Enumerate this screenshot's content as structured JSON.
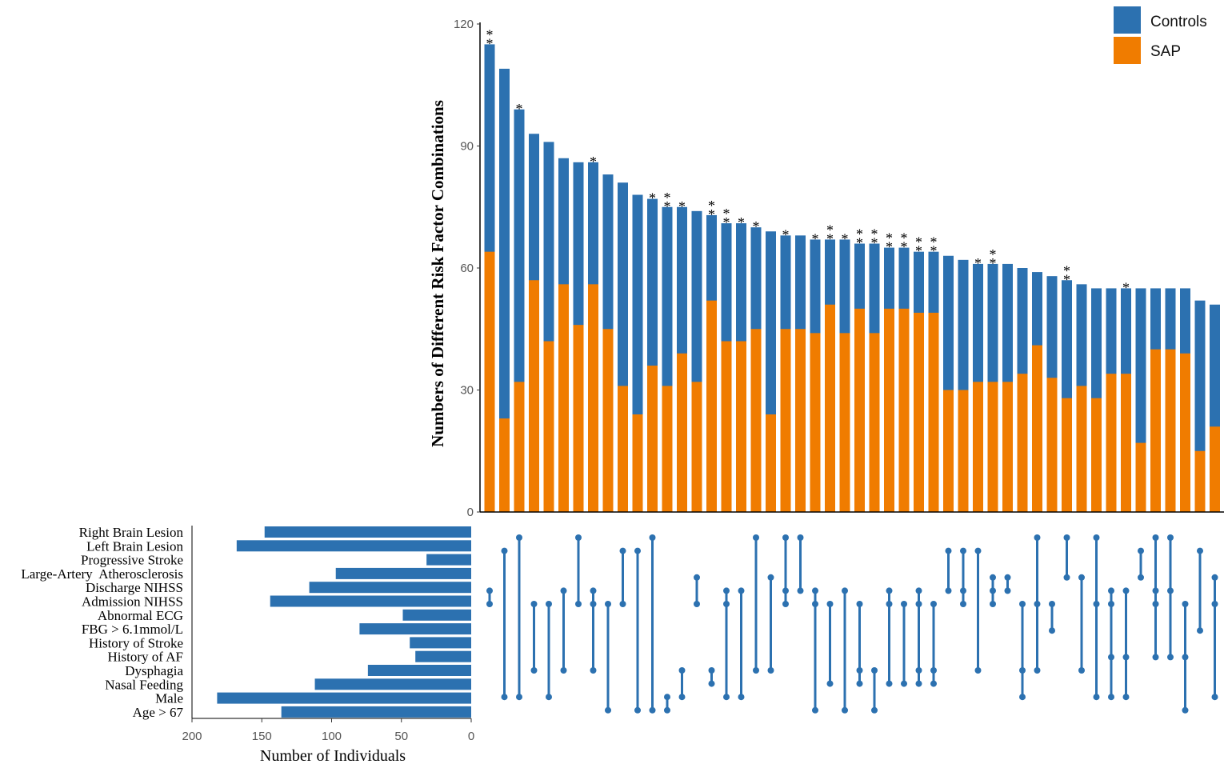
{
  "colors": {
    "controls": "#2c71b0",
    "sap": "#f07c00",
    "matrix": "#2c71b0",
    "set_bars": "#2c71b0"
  },
  "chart_data": [
    {
      "type": "bar",
      "stacked": true,
      "ylabel": "Numbers of Different Risk Factor Combinations",
      "ylim": [
        0,
        120
      ],
      "yticks": [
        0,
        30,
        60,
        90,
        120
      ],
      "legend": {
        "placement": "top-right",
        "entries": [
          "Controls",
          "SAP"
        ]
      },
      "totals": [
        115,
        109,
        99,
        93,
        91,
        87,
        86,
        86,
        83,
        81,
        78,
        77,
        75,
        75,
        74,
        73,
        71,
        71,
        70,
        69,
        68,
        68,
        67,
        67,
        67,
        66,
        66,
        65,
        65,
        64,
        64,
        63,
        62,
        61,
        61,
        61,
        60,
        59,
        58,
        57,
        56,
        55,
        55,
        55,
        55,
        55,
        55,
        55,
        52,
        51
      ],
      "series": [
        {
          "name": "SAP",
          "values": [
            64,
            23,
            32,
            57,
            42,
            56,
            46,
            56,
            45,
            31,
            24,
            36,
            31,
            39,
            32,
            52,
            42,
            42,
            45,
            24,
            45,
            45,
            44,
            51,
            44,
            50,
            44,
            50,
            50,
            49,
            49,
            30,
            30,
            32,
            32,
            32,
            34,
            41,
            33,
            28,
            31,
            28,
            34,
            34,
            17,
            40,
            40,
            39,
            15,
            21
          ]
        }
      ],
      "significance": [
        "**",
        "",
        "*",
        "",
        "",
        "",
        "",
        "*",
        "",
        "",
        "",
        "*",
        "**",
        "*",
        "",
        "**",
        "**",
        "*",
        "*",
        "",
        "*",
        "",
        "*",
        "**",
        "*",
        "**",
        "**",
        "**",
        "**",
        "**",
        "**",
        "",
        "",
        "*",
        "**",
        "",
        "",
        "",
        "",
        "**",
        "",
        "",
        "",
        "*",
        "",
        "",
        "",
        "",
        "",
        ""
      ]
    },
    {
      "type": "bar",
      "orientation": "horizontal",
      "xlabel": "Number of Individuals",
      "xticks": [
        200,
        150,
        100,
        50,
        0
      ],
      "xlim": [
        200,
        0
      ],
      "categories": [
        "Right Brain Lesion",
        "Left Brain Lesion",
        "Progressive Stroke",
        "Large-Artery  Atherosclerosis",
        "Discharge NIHSS",
        "Admission NIHSS",
        "Abnormal ECG",
        "FBG > 6.1mmol/L",
        "History of Stroke",
        "History of AF",
        "Dysphagia",
        "Nasal Feeding",
        "Male",
        "Age > 67"
      ],
      "values": [
        148,
        168,
        32,
        97,
        116,
        144,
        49,
        80,
        44,
        40,
        74,
        112,
        182,
        136
      ]
    },
    {
      "type": "matrix",
      "description_rows": "set indices per combination column, matching the categories above",
      "combinations": [
        [
          4,
          5
        ],
        [
          1,
          12
        ],
        [
          0,
          12
        ],
        [
          5,
          10
        ],
        [
          5,
          12
        ],
        [
          4,
          10
        ],
        [
          0,
          5
        ],
        [
          4,
          5,
          10
        ],
        [
          5,
          13
        ],
        [
          1,
          5
        ],
        [
          1,
          13
        ],
        [
          0,
          13
        ],
        [
          12,
          13
        ],
        [
          10,
          12
        ],
        [
          3,
          5
        ],
        [
          10,
          11
        ],
        [
          4,
          5,
          12
        ],
        [
          4,
          12
        ],
        [
          0,
          10
        ],
        [
          3,
          10
        ],
        [
          0,
          4,
          5
        ],
        [
          0,
          4
        ],
        [
          4,
          5,
          13
        ],
        [
          5,
          11
        ],
        [
          4,
          13
        ],
        [
          5,
          10,
          11
        ],
        [
          10,
          13
        ],
        [
          4,
          5,
          11
        ],
        [
          5,
          11
        ],
        [
          4,
          5,
          10,
          11
        ],
        [
          5,
          10,
          11
        ],
        [
          1,
          4
        ],
        [
          1,
          4,
          5
        ],
        [
          1,
          10
        ],
        [
          3,
          4,
          5
        ],
        [
          3,
          4
        ],
        [
          5,
          10,
          12
        ],
        [
          0,
          5,
          10
        ],
        [
          5,
          7
        ],
        [
          0,
          3
        ],
        [
          3,
          10
        ],
        [
          0,
          5,
          12
        ],
        [
          4,
          5,
          9,
          12
        ],
        [
          4,
          9,
          12
        ],
        [
          1,
          3
        ],
        [
          0,
          4,
          5,
          9
        ],
        [
          0,
          4,
          9
        ],
        [
          5,
          9,
          13
        ],
        [
          1,
          7
        ],
        [
          3,
          5,
          12
        ]
      ]
    }
  ]
}
